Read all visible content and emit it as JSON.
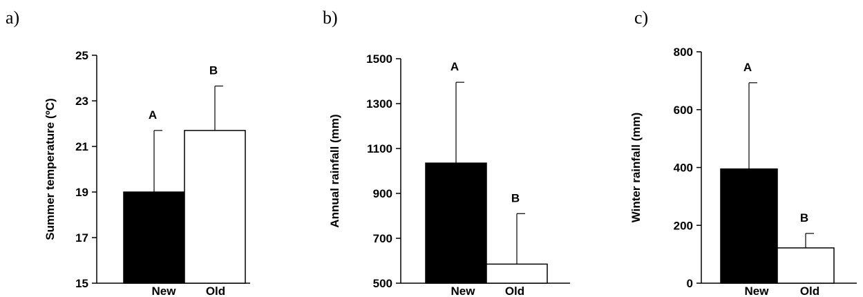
{
  "chart_data": [
    {
      "type": "bar",
      "panel_label": "a)",
      "ylabel": "Summer temperature (ºC)",
      "ylim": [
        15,
        25
      ],
      "yticks": [
        15,
        17,
        19,
        21,
        23,
        25
      ],
      "categories": [
        "New",
        "Old"
      ],
      "values": [
        19.0,
        21.7
      ],
      "errors": [
        2.7,
        1.95
      ],
      "significance": [
        "A",
        "B"
      ],
      "colors": [
        "#000000",
        "#ffffff"
      ]
    },
    {
      "type": "bar",
      "panel_label": "b)",
      "ylabel": "Annual rainfall (mm)",
      "ylim": [
        500,
        1500
      ],
      "yticks": [
        500,
        700,
        900,
        1100,
        1300,
        1500
      ],
      "categories": [
        "New",
        "Old"
      ],
      "values": [
        1035,
        585
      ],
      "errors": [
        360,
        225
      ],
      "significance": [
        "A",
        "B"
      ],
      "colors": [
        "#000000",
        "#ffffff"
      ]
    },
    {
      "type": "bar",
      "panel_label": "c)",
      "ylabel": "Winter rainfall (mm)",
      "ylim": [
        0,
        800
      ],
      "yticks": [
        0,
        200,
        400,
        600,
        800
      ],
      "categories": [
        "New",
        "Old"
      ],
      "values": [
        395,
        122
      ],
      "errors": [
        298,
        50
      ],
      "significance": [
        "A",
        "B"
      ],
      "colors": [
        "#000000",
        "#ffffff"
      ]
    }
  ]
}
